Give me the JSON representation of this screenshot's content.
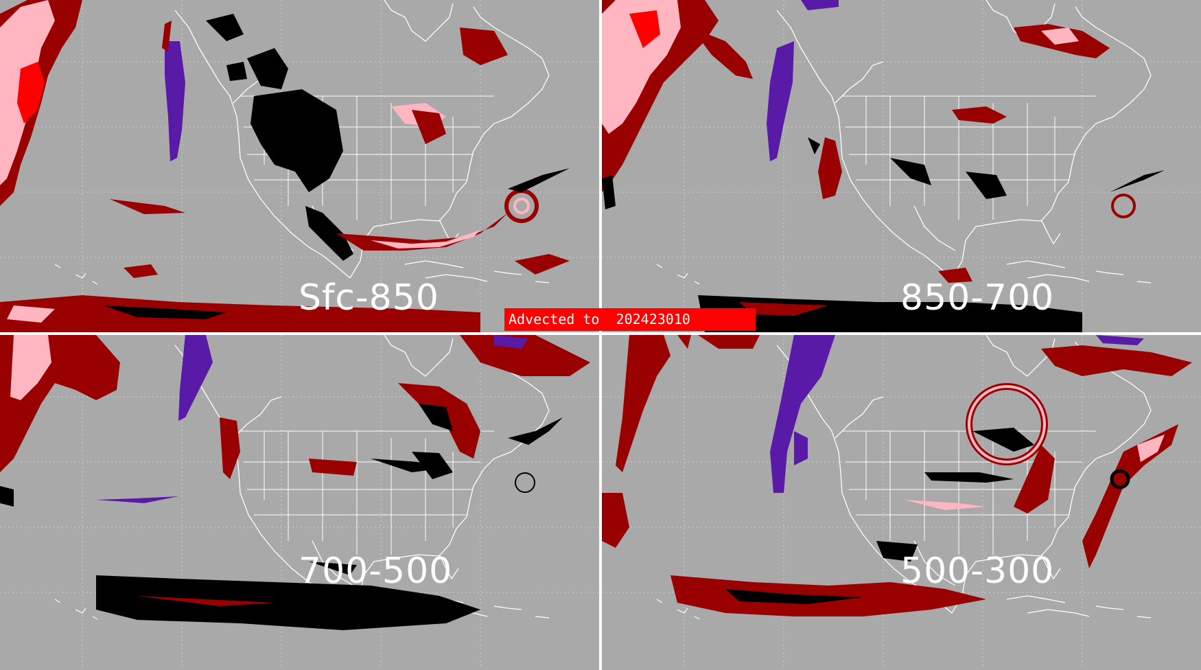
{
  "panels": [
    {
      "label": "Sfc-850"
    },
    {
      "label": "850-700"
    },
    {
      "label": "700-500"
    },
    {
      "label": "500-300"
    }
  ],
  "banner": {
    "text": "Advected to  202423010"
  },
  "colors": {
    "background": "#a9a9a9",
    "coastline": "#ffffff",
    "dark_red": "#990000",
    "red": "#ff0000",
    "pink": "#ffb6c1",
    "purple": "#5a1aa8",
    "black": "#000000",
    "banner": "#ff0000"
  }
}
